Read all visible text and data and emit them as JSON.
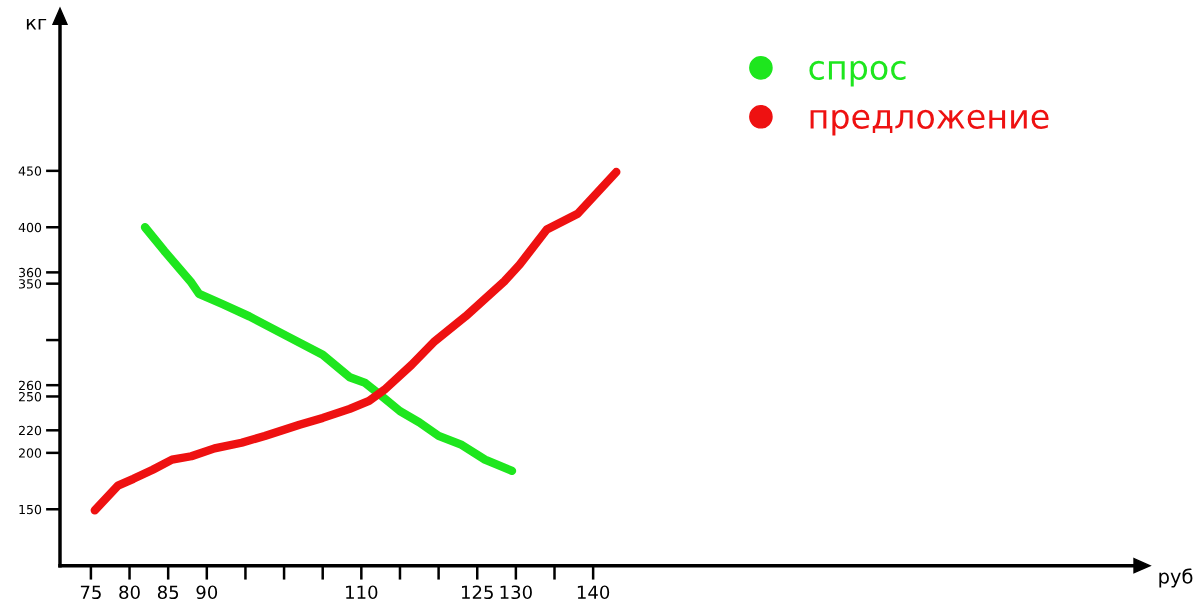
{
  "chart_data": {
    "type": "line",
    "xlabel": "руб",
    "ylabel": "кг",
    "xlim": [
      71,
      210
    ],
    "ylim": [
      100,
      580
    ],
    "xticks": [
      75,
      80,
      85,
      90,
      {
        "value": 95,
        "label": null
      },
      {
        "value": 100,
        "label": null
      },
      {
        "value": 105,
        "label": null
      },
      110,
      {
        "value": 115,
        "label": null
      },
      {
        "value": 120,
        "label": null
      },
      125,
      130,
      {
        "value": 135,
        "label": null
      },
      140
    ],
    "yticks": [
      150,
      200,
      220,
      250,
      260,
      {
        "value": 300,
        "label": null
      },
      350,
      360,
      400,
      450
    ],
    "legend": "top right",
    "line_style": "solid",
    "series": [
      {
        "name": "спрос",
        "color": "#1ee61e",
        "x": [
          82,
          84.5,
          88,
          89,
          92,
          95.5,
          100.5,
          105,
          108.5,
          110.5,
          112.5,
          115,
          117.5,
          120,
          123,
          126,
          129.5
        ],
        "values": [
          400,
          379,
          351,
          341,
          332,
          321,
          303,
          287,
          267,
          262,
          251,
          237,
          227,
          215,
          207,
          194,
          184
        ]
      },
      {
        "name": "предложение",
        "color": "#ee1111",
        "x": [
          75.5,
          78.5,
          80.5,
          83,
          85.5,
          88,
          91,
          94.5,
          97.5,
          102,
          105,
          108.5,
          111,
          113,
          116.5,
          119.5,
          123.5,
          128.5,
          130.5,
          134,
          138,
          143
        ],
        "values": [
          149,
          171,
          177,
          185,
          194,
          197,
          204,
          209,
          215,
          225,
          231,
          239,
          246,
          256,
          278,
          299,
          321,
          352,
          367,
          398,
          412,
          449
        ]
      }
    ]
  }
}
